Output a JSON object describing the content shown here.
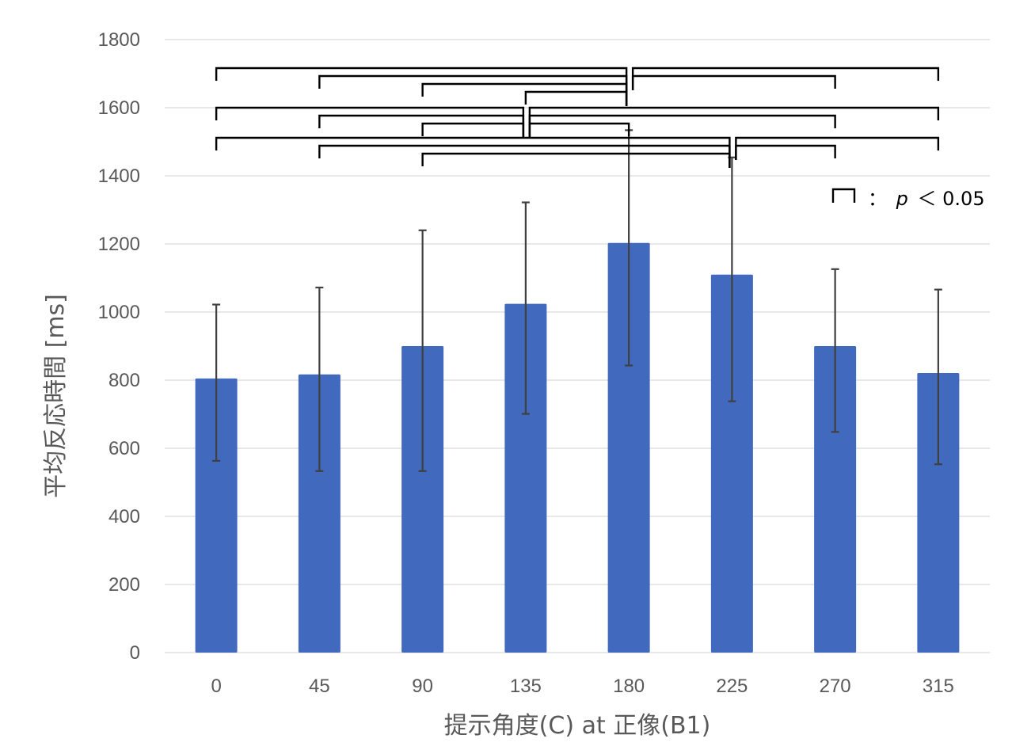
{
  "chart_data": {
    "type": "bar",
    "categories": [
      "0",
      "45",
      "90",
      "135",
      "180",
      "225",
      "270",
      "315"
    ],
    "values": [
      805,
      817,
      900,
      1024,
      1203,
      1110,
      900,
      821
    ],
    "error_bars": {
      "upper": [
        1022,
        1072,
        1240,
        1322,
        1534,
        1454,
        1126,
        1066
      ],
      "lower": [
        563,
        533,
        533,
        701,
        843,
        738,
        648,
        553
      ]
    },
    "title": "",
    "xlabel": "提示角度(C) at 正像(B1)",
    "ylabel": "平均反応時間 [ms]",
    "ylim": [
      0,
      1800
    ],
    "yticks": [
      0,
      200,
      400,
      600,
      800,
      1000,
      1200,
      1400,
      1600,
      1800
    ],
    "grid": true,
    "legend": {
      "placement": "top-right",
      "colon": "：",
      "p_symbol": "p",
      "comparator": "＜",
      "threshold": "0.05"
    },
    "significance_pairs": [
      [
        "0",
        "180"
      ],
      [
        "45",
        "180"
      ],
      [
        "90",
        "180"
      ],
      [
        "135",
        "180"
      ],
      [
        "180",
        "270"
      ],
      [
        "180",
        "315"
      ],
      [
        "0",
        "135"
      ],
      [
        "45",
        "135"
      ],
      [
        "90",
        "135"
      ],
      [
        "135",
        "270"
      ],
      [
        "135",
        "315"
      ],
      [
        "0",
        "225"
      ],
      [
        "45",
        "225"
      ],
      [
        "90",
        "225"
      ],
      [
        "225",
        "270"
      ],
      [
        "225",
        "315"
      ]
    ],
    "colors": {
      "bar": "#4169bd",
      "error_bar": "#404040",
      "grid": "#d9d9d9",
      "bracket": "#000000"
    }
  }
}
